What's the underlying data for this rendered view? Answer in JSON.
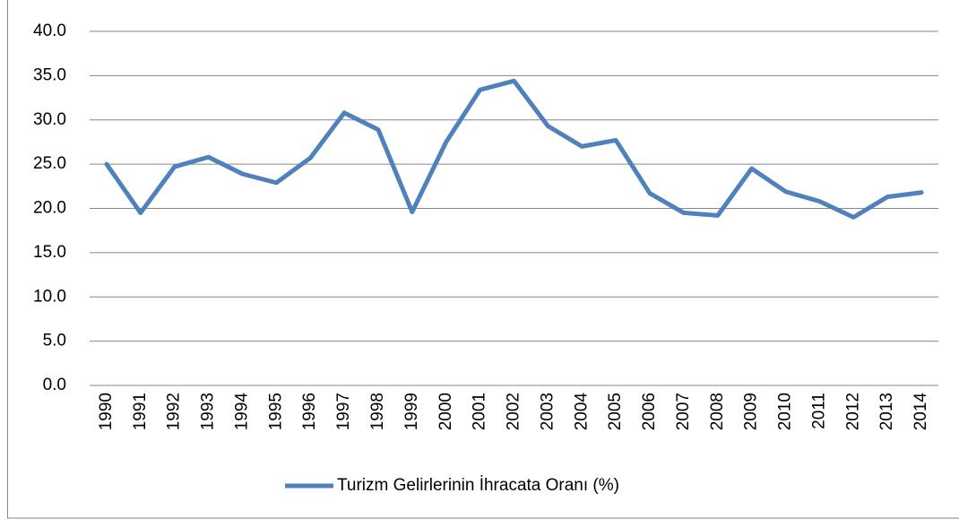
{
  "chart_data": {
    "type": "line",
    "categories": [
      "1990",
      "1991",
      "1992",
      "1993",
      "1994",
      "1995",
      "1996",
      "1997",
      "1998",
      "1999",
      "2000",
      "2001",
      "2002",
      "2003",
      "2004",
      "2005",
      "2006",
      "2007",
      "2008",
      "2009",
      "2010",
      "2011",
      "2012",
      "2013",
      "2014"
    ],
    "series": [
      {
        "name": "Turizm Gelirlerinin İhracata Oranı (%)",
        "color": "#4f81bd",
        "values": [
          25.0,
          19.5,
          24.7,
          25.8,
          23.9,
          22.9,
          25.7,
          30.8,
          28.9,
          19.6,
          27.5,
          33.4,
          34.4,
          29.3,
          27.0,
          27.7,
          21.7,
          19.5,
          19.2,
          24.5,
          21.9,
          20.8,
          19.0,
          21.3,
          21.8
        ]
      }
    ],
    "ylim": [
      0,
      40
    ],
    "yticks": [
      {
        "value": 0,
        "label": "0.0"
      },
      {
        "value": 5,
        "label": "5.0"
      },
      {
        "value": 10,
        "label": "10.0"
      },
      {
        "value": 15,
        "label": "15.0"
      },
      {
        "value": 20,
        "label": "20.0"
      },
      {
        "value": 25,
        "label": "25.0"
      },
      {
        "value": 30,
        "label": "30.0"
      },
      {
        "value": 35,
        "label": "35.0"
      },
      {
        "value": 40,
        "label": "40.0"
      }
    ],
    "grid": true,
    "legend": "bottom"
  }
}
